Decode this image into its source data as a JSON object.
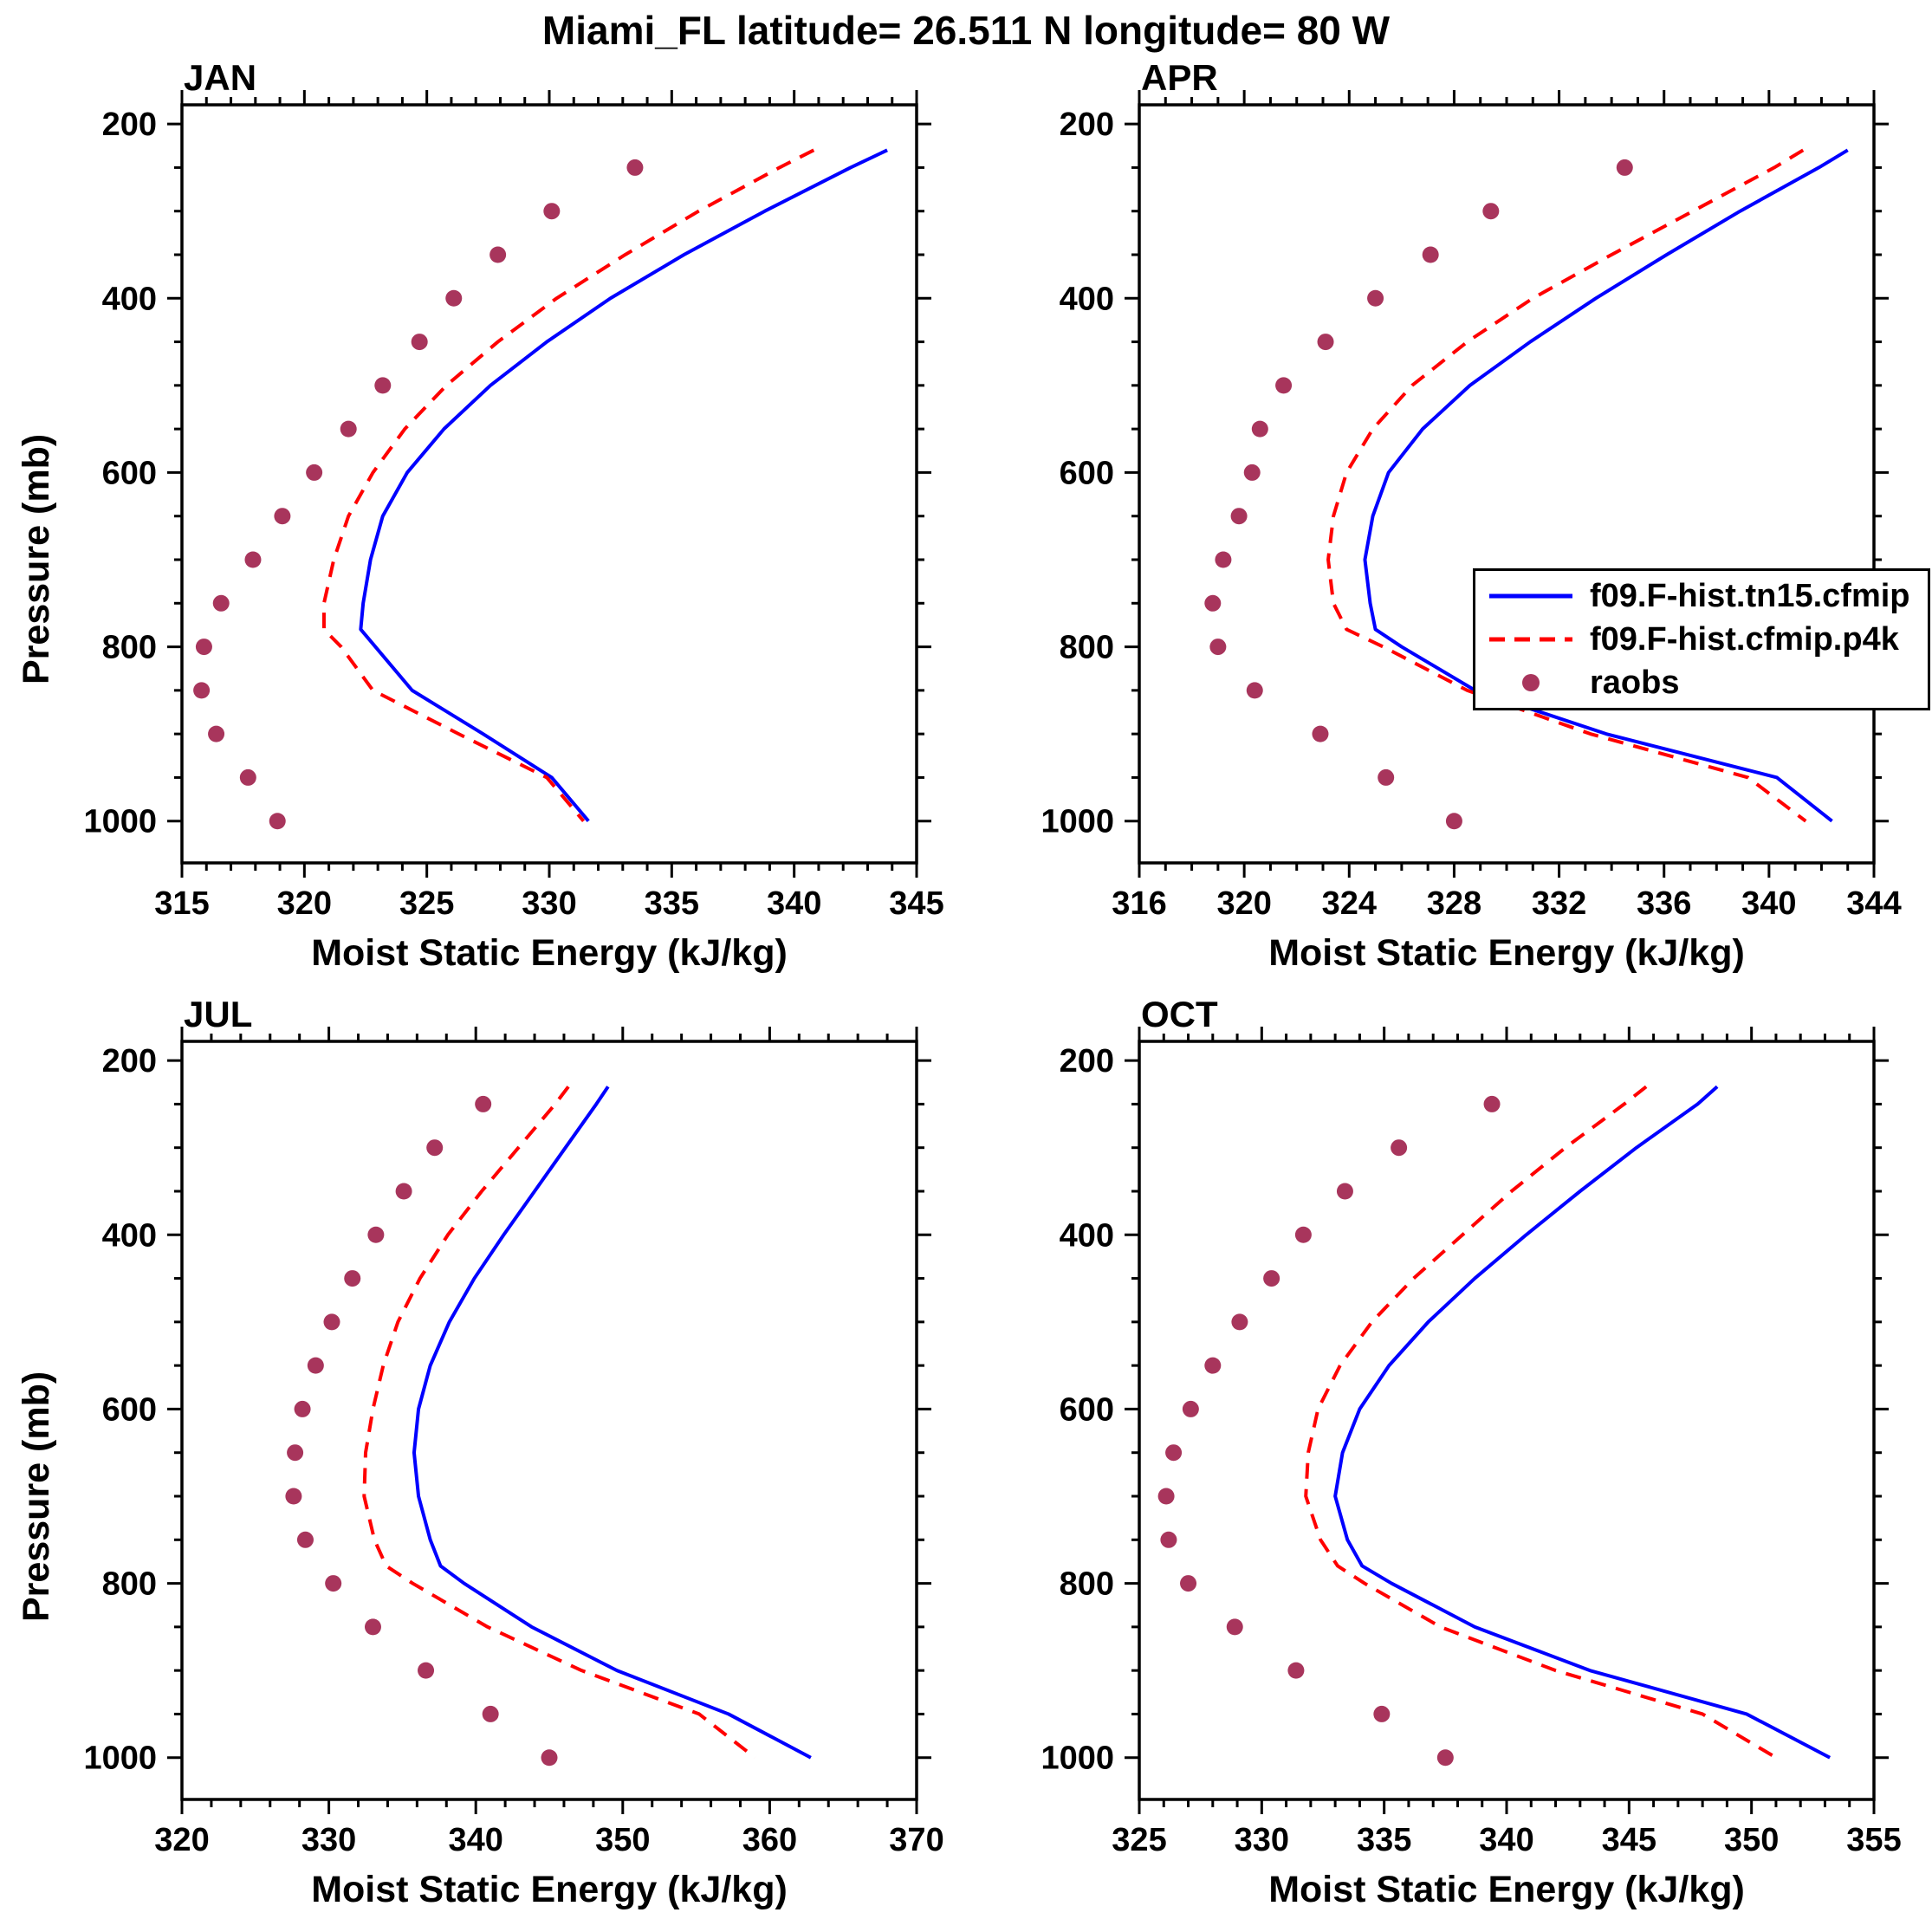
{
  "page_title": "Miami_FL  latitude= 26.511 N longitude= 80 W",
  "ylabel": "Pressure (mb)",
  "xlabel": "Moist Static Energy (kJ/kg)",
  "colors": {
    "model1": "#0000ff",
    "model2": "#ff0000",
    "obs": "#a8355c",
    "axes": "#000000"
  },
  "legend": {
    "items": [
      {
        "label": "f09.F-hist.tn15.cfmip",
        "style": "solid",
        "color": "#0000ff"
      },
      {
        "label": "f09.F-hist.cfmip.p4k",
        "style": "dashed",
        "color": "#ff0000"
      },
      {
        "label": "raobs",
        "style": "dot",
        "color": "#a8355c"
      }
    ]
  },
  "chart_data": [
    {
      "type": "line",
      "title": "JAN",
      "xlabel": "Moist Static Energy (kJ/kg)",
      "ylabel": "Pressure (mb)",
      "xlim": [
        315,
        345
      ],
      "ylim": [
        200,
        1000
      ],
      "y_inverted": true,
      "xticks": [
        315,
        320,
        325,
        330,
        335,
        340,
        345
      ],
      "x_minor_step": 1,
      "yticks": [
        200,
        400,
        600,
        800,
        1000
      ],
      "y_minor_step": 50,
      "series": [
        {
          "name": "f09.F-hist.tn15.cfmip",
          "style": "solid",
          "color": "#0000ff",
          "pressure": [
            230,
            250,
            300,
            350,
            400,
            450,
            500,
            550,
            600,
            650,
            700,
            750,
            780,
            800,
            850,
            900,
            950,
            1000
          ],
          "values": [
            343.8,
            342.3,
            338.8,
            335.5,
            332.5,
            329.9,
            327.6,
            325.7,
            324.2,
            323.2,
            322.7,
            322.4,
            322.3,
            322.9,
            324.4,
            327.3,
            330.1,
            331.6
          ]
        },
        {
          "name": "f09.F-hist.cfmip.p4k",
          "style": "dashed",
          "color": "#ff0000",
          "pressure": [
            230,
            250,
            300,
            350,
            400,
            450,
            500,
            550,
            600,
            650,
            700,
            750,
            780,
            800,
            850,
            900,
            950,
            1000
          ],
          "values": [
            340.8,
            339.4,
            336.1,
            333.1,
            330.3,
            327.9,
            325.8,
            324.1,
            322.8,
            321.8,
            321.2,
            320.8,
            320.8,
            321.5,
            322.8,
            326.3,
            329.9,
            331.4
          ]
        },
        {
          "name": "raobs",
          "style": "dots",
          "color": "#a8355c",
          "pressure": [
            250,
            300,
            350,
            400,
            450,
            500,
            550,
            600,
            650,
            700,
            750,
            800,
            850,
            900,
            950,
            1000
          ],
          "values": [
            333.5,
            330.1,
            327.9,
            326.1,
            324.7,
            323.2,
            321.8,
            320.4,
            319.1,
            317.9,
            316.6,
            315.9,
            315.8,
            316.4,
            317.7,
            318.9
          ]
        }
      ]
    },
    {
      "type": "line",
      "title": "APR",
      "xlabel": "Moist Static Energy (kJ/kg)",
      "ylabel": "Pressure (mb)",
      "xlim": [
        316,
        344
      ],
      "ylim": [
        200,
        1000
      ],
      "y_inverted": true,
      "xticks": [
        316,
        320,
        324,
        328,
        332,
        336,
        340,
        344
      ],
      "x_minor_step": 1,
      "yticks": [
        200,
        400,
        600,
        800,
        1000
      ],
      "y_minor_step": 50,
      "series": [
        {
          "name": "f09.F-hist.tn15.cfmip",
          "style": "solid",
          "color": "#0000ff",
          "pressure": [
            230,
            250,
            300,
            350,
            400,
            450,
            500,
            550,
            600,
            650,
            700,
            750,
            780,
            800,
            850,
            900,
            950,
            1000
          ],
          "values": [
            343.0,
            341.9,
            338.9,
            336.1,
            333.4,
            330.9,
            328.6,
            326.8,
            325.5,
            324.9,
            324.6,
            324.8,
            325.0,
            326.0,
            328.8,
            333.8,
            340.3,
            342.4
          ]
        },
        {
          "name": "f09.F-hist.cfmip.p4k",
          "style": "dashed",
          "color": "#ff0000",
          "pressure": [
            230,
            250,
            300,
            350,
            400,
            450,
            500,
            550,
            600,
            650,
            700,
            750,
            780,
            800,
            850,
            900,
            950,
            1000
          ],
          "values": [
            341.3,
            340.2,
            337.1,
            334.0,
            331.0,
            328.5,
            326.4,
            324.9,
            323.9,
            323.4,
            323.2,
            323.4,
            323.9,
            325.3,
            328.5,
            333.2,
            339.2,
            341.4
          ]
        },
        {
          "name": "raobs",
          "style": "dots",
          "color": "#a8355c",
          "pressure": [
            250,
            300,
            350,
            400,
            450,
            500,
            550,
            600,
            650,
            700,
            750,
            800,
            850,
            900,
            950,
            1000
          ],
          "values": [
            334.5,
            329.4,
            327.1,
            325.0,
            323.1,
            321.5,
            320.6,
            320.3,
            319.8,
            319.2,
            318.8,
            319.0,
            320.4,
            322.9,
            325.4,
            328.0
          ]
        }
      ]
    },
    {
      "type": "line",
      "title": "JUL",
      "xlabel": "Moist Static Energy (kJ/kg)",
      "ylabel": "Pressure (mb)",
      "xlim": [
        320,
        370
      ],
      "ylim": [
        200,
        1000
      ],
      "y_inverted": true,
      "xticks": [
        320,
        330,
        340,
        350,
        360,
        370
      ],
      "x_minor_step": 2,
      "yticks": [
        200,
        400,
        600,
        800,
        1000
      ],
      "y_minor_step": 50,
      "series": [
        {
          "name": "f09.F-hist.tn15.cfmip",
          "style": "solid",
          "color": "#0000ff",
          "pressure": [
            230,
            250,
            300,
            350,
            400,
            450,
            500,
            550,
            600,
            650,
            700,
            750,
            780,
            800,
            850,
            900,
            950,
            1000
          ],
          "values": [
            349.0,
            348.2,
            346.1,
            344.0,
            341.9,
            339.9,
            338.2,
            336.9,
            336.1,
            335.8,
            336.1,
            336.9,
            337.6,
            339.2,
            343.8,
            349.6,
            357.2,
            362.8
          ]
        },
        {
          "name": "f09.F-hist.cfmip.p4k",
          "style": "dashed",
          "color": "#ff0000",
          "pressure": [
            230,
            250,
            300,
            350,
            400,
            450,
            500,
            550,
            600,
            650,
            700,
            750,
            780,
            800,
            850,
            900,
            950,
            1000
          ],
          "values": [
            346.3,
            345.4,
            342.9,
            340.4,
            338.1,
            336.2,
            334.7,
            333.7,
            333.0,
            332.5,
            332.4,
            333.1,
            333.9,
            335.7,
            340.8,
            347.2,
            355.2,
            359.0
          ]
        },
        {
          "name": "raobs",
          "style": "dots",
          "color": "#a8355c",
          "pressure": [
            250,
            300,
            350,
            400,
            450,
            500,
            550,
            600,
            650,
            700,
            750,
            800,
            850,
            900,
            950,
            1000
          ],
          "values": [
            340.5,
            337.2,
            335.1,
            333.2,
            331.6,
            330.2,
            329.1,
            328.2,
            327.7,
            327.6,
            328.4,
            330.3,
            333.0,
            336.6,
            341.0,
            345.0
          ]
        }
      ]
    },
    {
      "type": "line",
      "title": "OCT",
      "xlabel": "Moist Static Energy (kJ/kg)",
      "ylabel": "Pressure (mb)",
      "xlim": [
        325,
        355
      ],
      "ylim": [
        200,
        1000
      ],
      "y_inverted": true,
      "xticks": [
        325,
        330,
        335,
        340,
        345,
        350,
        355
      ],
      "x_minor_step": 1,
      "yticks": [
        200,
        400,
        600,
        800,
        1000
      ],
      "y_minor_step": 50,
      "series": [
        {
          "name": "f09.F-hist.tn15.cfmip",
          "style": "solid",
          "color": "#0000ff",
          "pressure": [
            230,
            250,
            300,
            350,
            400,
            450,
            500,
            550,
            600,
            650,
            700,
            750,
            780,
            800,
            850,
            900,
            950,
            1000
          ],
          "values": [
            348.6,
            347.8,
            345.3,
            343.0,
            340.8,
            338.7,
            336.8,
            335.2,
            334.0,
            333.3,
            333.0,
            333.5,
            334.1,
            335.3,
            338.7,
            343.4,
            349.8,
            353.2
          ]
        },
        {
          "name": "f09.F-hist.cfmip.p4k",
          "style": "dashed",
          "color": "#ff0000",
          "pressure": [
            230,
            250,
            300,
            350,
            400,
            450,
            500,
            550,
            600,
            650,
            700,
            750,
            780,
            800,
            850,
            900,
            950,
            1000
          ],
          "values": [
            345.7,
            344.8,
            342.4,
            340.2,
            338.2,
            336.2,
            334.5,
            333.2,
            332.3,
            331.9,
            331.8,
            332.4,
            333.1,
            334.2,
            337.3,
            342.0,
            348.0,
            351.0
          ]
        },
        {
          "name": "raobs",
          "style": "dots",
          "color": "#a8355c",
          "pressure": [
            250,
            300,
            350,
            400,
            450,
            500,
            550,
            600,
            650,
            700,
            750,
            800,
            850,
            900,
            950,
            1000
          ],
          "values": [
            339.4,
            335.6,
            333.4,
            331.7,
            330.4,
            329.1,
            328.0,
            327.1,
            326.4,
            326.1,
            326.2,
            327.0,
            328.9,
            331.4,
            334.9,
            337.5
          ]
        }
      ]
    }
  ]
}
